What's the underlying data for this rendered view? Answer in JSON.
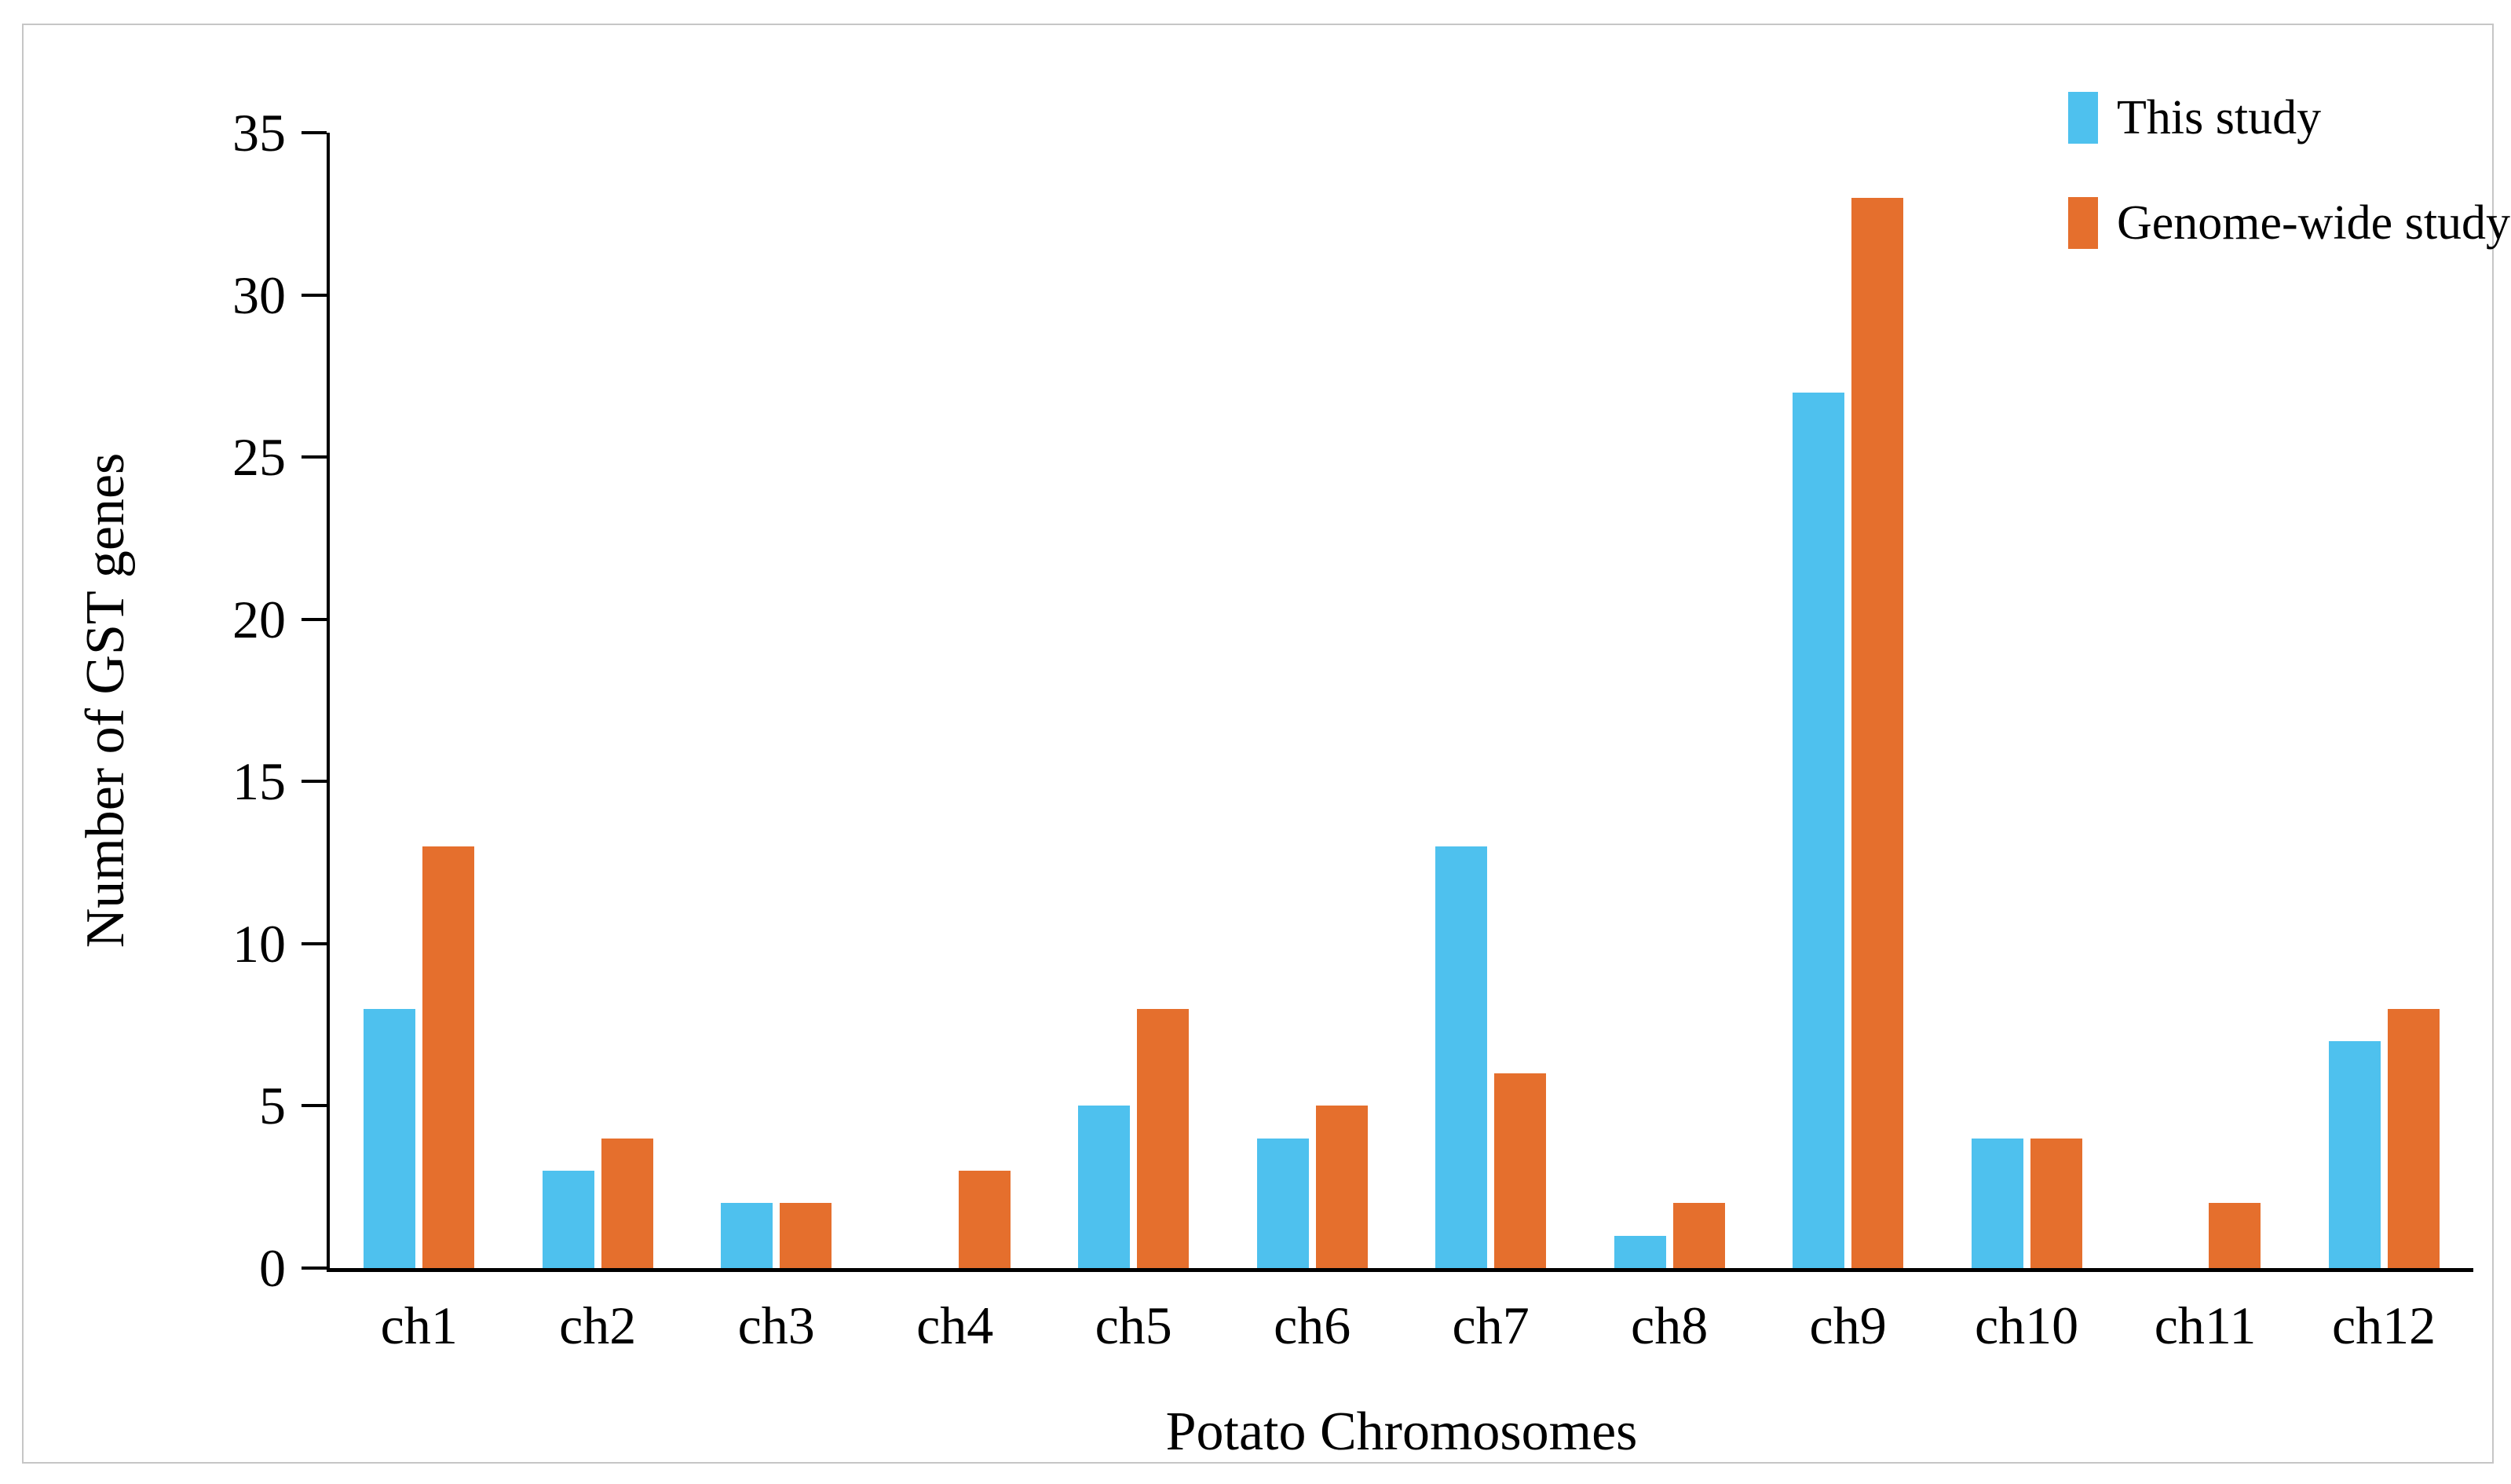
{
  "chart_data": {
    "type": "bar",
    "title": "",
    "xlabel": "Potato Chromosomes",
    "ylabel": "Number of GST genes",
    "categories": [
      "ch1",
      "ch2",
      "ch3",
      "ch4",
      "ch5",
      "ch6",
      "ch7",
      "ch8",
      "ch9",
      "ch10",
      "ch11",
      "ch12"
    ],
    "series": [
      {
        "name": "This study",
        "color": "#4ec1ee",
        "values": [
          8,
          3,
          2,
          0,
          5,
          4,
          13,
          1,
          27,
          4,
          0,
          7
        ]
      },
      {
        "name": "Genome-wide study",
        "color": "#e56f2d",
        "values": [
          13,
          4,
          2,
          3,
          8,
          5,
          6,
          2,
          33,
          4,
          2,
          8
        ]
      }
    ],
    "ylim": [
      0,
      35
    ],
    "yticks": [
      0,
      5,
      10,
      15,
      20,
      25,
      30,
      35
    ],
    "grid": false,
    "legend_position": "top-right",
    "axis_color": "#000000",
    "frame_border_color": "#c6c6c6"
  }
}
